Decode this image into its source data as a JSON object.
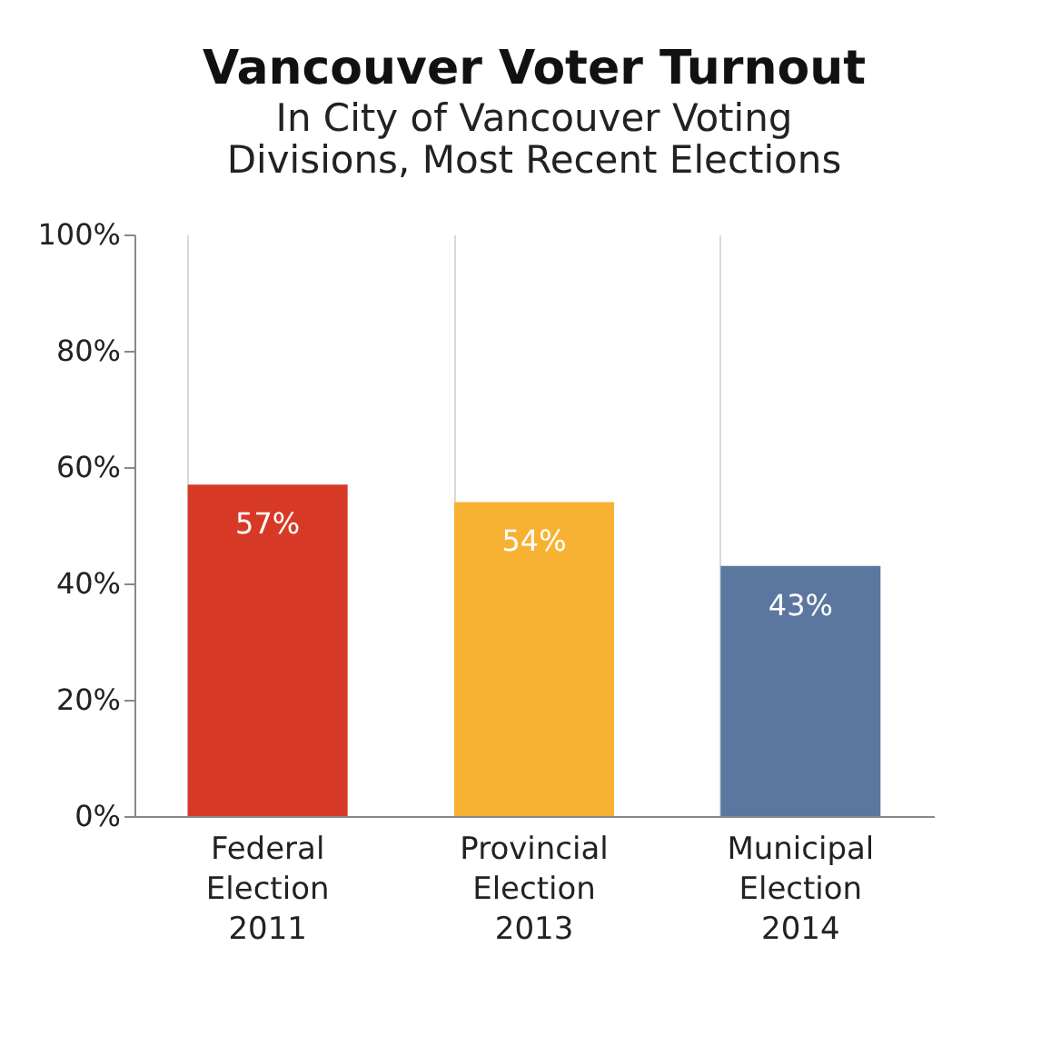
{
  "chart_data": {
    "type": "bar",
    "title": "Vancouver Voter Turnout",
    "subtitle": "In City of Vancouver Voting\nDivisions, Most Recent Elections",
    "categories": [
      "Federal\nElection\n2011",
      "Provincial\nElection\n2013",
      "Municipal\nElection\n2014"
    ],
    "values": [
      57,
      54,
      43
    ],
    "colors": [
      "#d63a26",
      "#f7b233",
      "#5b77a0"
    ],
    "value_labels": [
      "57%",
      "54%",
      "43%"
    ],
    "ylim": [
      0,
      100
    ],
    "yticks": [
      {
        "value": 0,
        "label": "0%"
      },
      {
        "value": 20,
        "label": "20%"
      },
      {
        "value": 40,
        "label": "40%"
      },
      {
        "value": 60,
        "label": "60%"
      },
      {
        "value": 80,
        "label": "80%"
      },
      {
        "value": 100,
        "label": "100%"
      }
    ],
    "grid": "x"
  }
}
